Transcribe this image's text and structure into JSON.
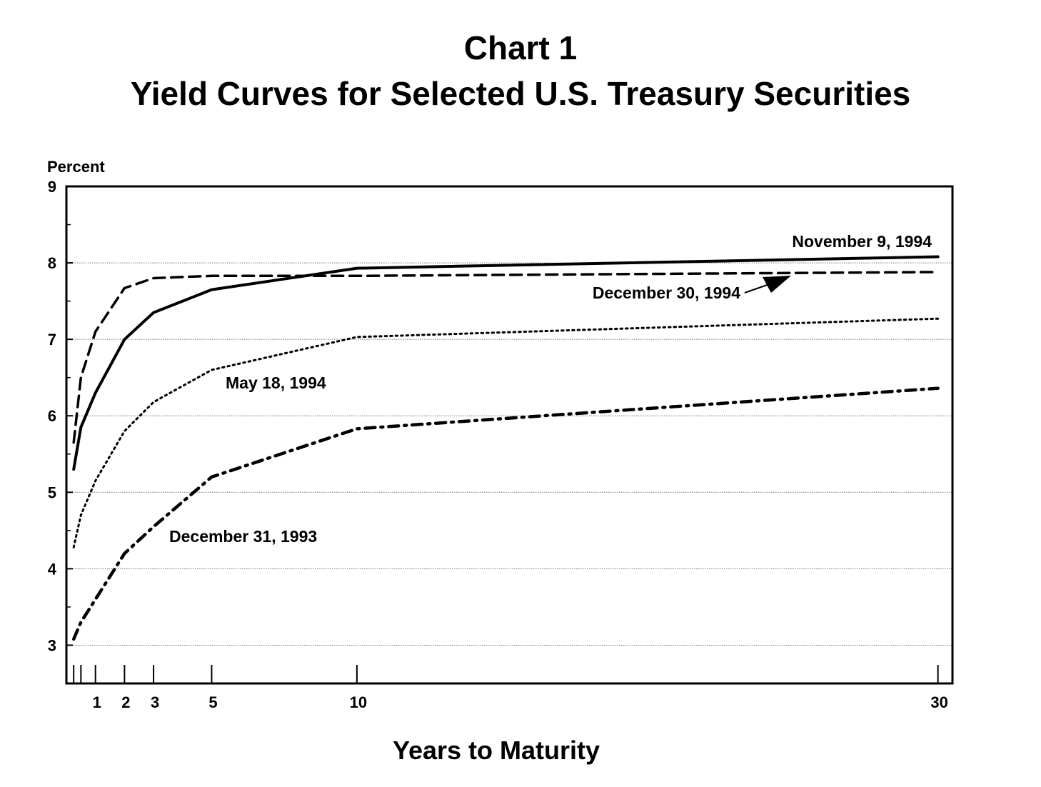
{
  "chart_data": {
    "type": "line",
    "title": "Chart 1",
    "subtitle": "Yield Curves for Selected U.S. Treasury Securities",
    "xlabel": "Years to Maturity",
    "ylabel": "Percent",
    "ylim": [
      2.5,
      9
    ],
    "xlim": [
      0,
      30.5
    ],
    "yticks": [
      3,
      4,
      5,
      6,
      7,
      8,
      9
    ],
    "xticks": [
      0.25,
      0.5,
      1,
      2,
      3,
      5,
      10,
      30
    ],
    "xtick_labels": [
      "",
      "",
      "1",
      "2",
      "3",
      "5",
      "10",
      "30"
    ],
    "grid": true,
    "series": [
      {
        "name": "November 9, 1994",
        "style": "solid",
        "x": [
          0.25,
          0.5,
          1,
          2,
          3,
          5,
          10,
          30
        ],
        "values": [
          5.3,
          5.85,
          6.3,
          7.0,
          7.35,
          7.65,
          7.93,
          8.08
        ]
      },
      {
        "name": "December 30, 1994",
        "style": "dashed",
        "x": [
          0.25,
          0.5,
          1,
          2,
          3,
          5,
          10,
          30
        ],
        "values": [
          5.65,
          6.5,
          7.1,
          7.67,
          7.8,
          7.83,
          7.83,
          7.88
        ]
      },
      {
        "name": "May 18, 1994",
        "style": "dotted",
        "x": [
          0.25,
          0.5,
          1,
          2,
          3,
          5,
          10,
          30
        ],
        "values": [
          4.28,
          4.7,
          5.15,
          5.8,
          6.18,
          6.6,
          7.03,
          7.27
        ]
      },
      {
        "name": "December 31, 1993",
        "style": "dashdot",
        "x": [
          0.25,
          0.5,
          1,
          2,
          3,
          5,
          10,
          30
        ],
        "values": [
          3.08,
          3.3,
          3.6,
          4.2,
          4.55,
          5.2,
          5.83,
          6.36
        ]
      }
    ],
    "annotations": [
      {
        "text": "November 9, 1994",
        "series": 0
      },
      {
        "text": "December 30, 1994",
        "series": 1,
        "arrow": true
      },
      {
        "text": "May 18, 1994",
        "series": 2
      },
      {
        "text": "December 31, 1993",
        "series": 3
      }
    ]
  }
}
